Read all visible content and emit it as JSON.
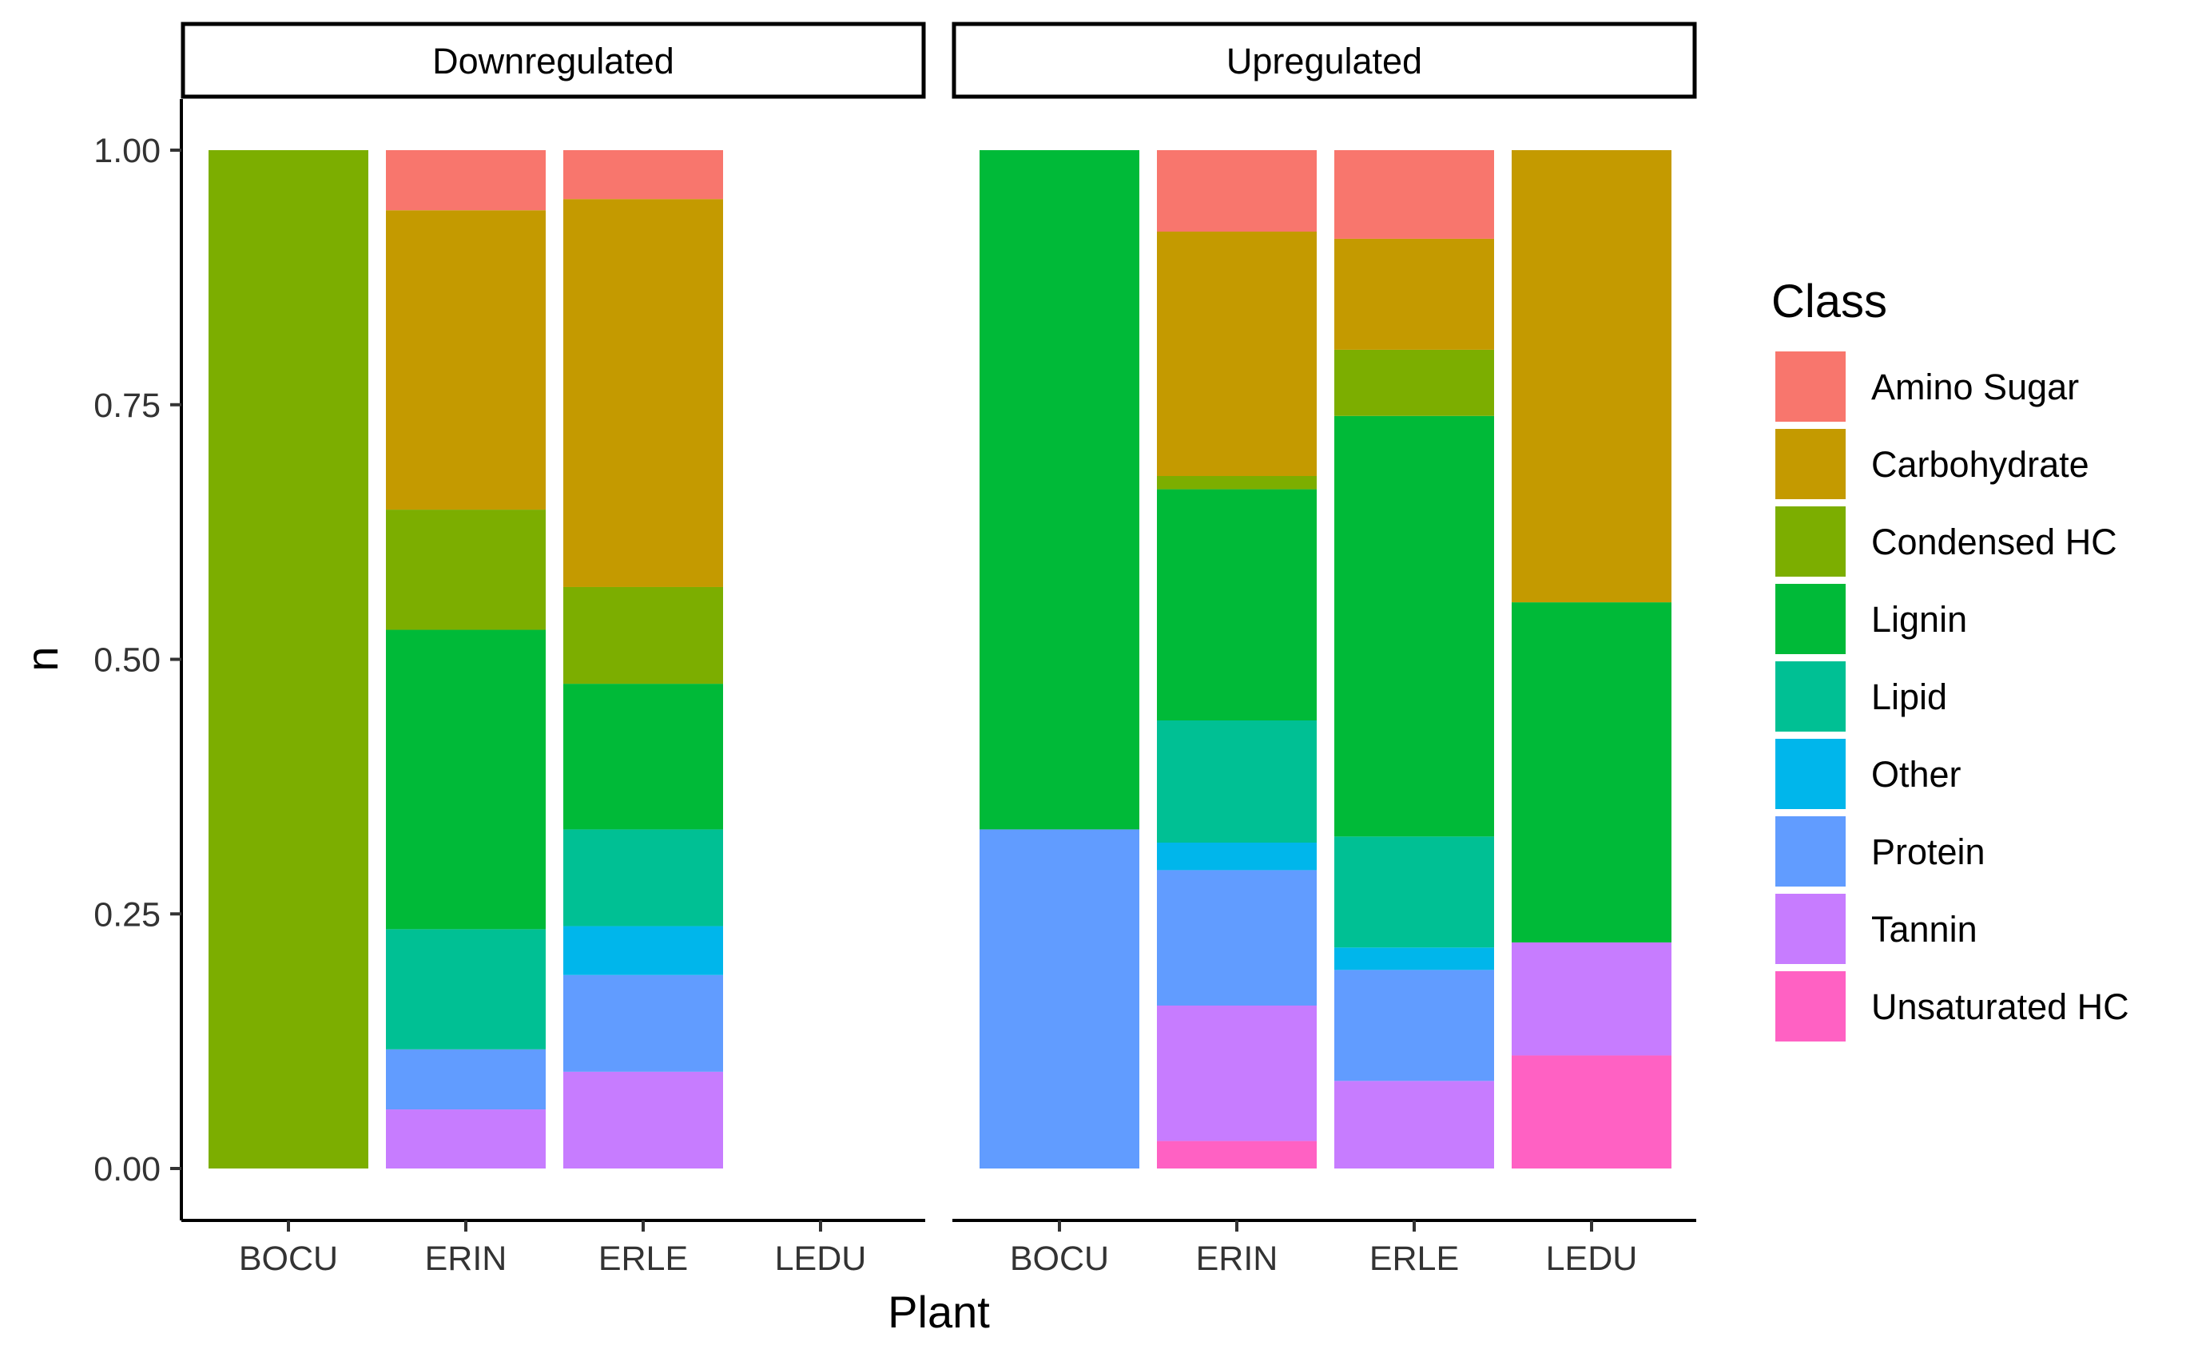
{
  "chart_data": {
    "type": "bar",
    "stacked": true,
    "xlabel": "Plant",
    "ylabel": "n",
    "ylim": [
      0,
      1
    ],
    "yticks": [
      "0.00",
      "0.25",
      "0.50",
      "0.75",
      "1.00"
    ],
    "categories": [
      "BOCU",
      "ERIN",
      "ERLE",
      "LEDU"
    ],
    "legend": {
      "title": "Class",
      "position": "right",
      "entries": [
        {
          "name": "Amino Sugar",
          "color": "#F8766D"
        },
        {
          "name": "Carbohydrate",
          "color": "#C49A00"
        },
        {
          "name": "Condensed HC",
          "color": "#7CAE00"
        },
        {
          "name": "Lignin",
          "color": "#00BA38"
        },
        {
          "name": "Lipid",
          "color": "#00C094"
        },
        {
          "name": "Other",
          "color": "#00B6EB"
        },
        {
          "name": "Protein",
          "color": "#619CFF"
        },
        {
          "name": "Tannin",
          "color": "#C77CFF"
        },
        {
          "name": "Unsaturated HC",
          "color": "#FF61C3"
        }
      ]
    },
    "panels": [
      {
        "label": "Downregulated",
        "bars": [
          {
            "category": "BOCU",
            "segments": [
              {
                "class": "Condensed HC",
                "value": 1.0
              }
            ]
          },
          {
            "category": "ERIN",
            "segments": [
              {
                "class": "Amino Sugar",
                "value": 0.059
              },
              {
                "class": "Carbohydrate",
                "value": 0.294
              },
              {
                "class": "Condensed HC",
                "value": 0.118
              },
              {
                "class": "Lignin",
                "value": 0.294
              },
              {
                "class": "Lipid",
                "value": 0.118
              },
              {
                "class": "Protein",
                "value": 0.059
              },
              {
                "class": "Tannin",
                "value": 0.058
              }
            ]
          },
          {
            "category": "ERLE",
            "segments": [
              {
                "class": "Amino Sugar",
                "value": 0.048
              },
              {
                "class": "Carbohydrate",
                "value": 0.381
              },
              {
                "class": "Condensed HC",
                "value": 0.095
              },
              {
                "class": "Lignin",
                "value": 0.143
              },
              {
                "class": "Lipid",
                "value": 0.095
              },
              {
                "class": "Other",
                "value": 0.048
              },
              {
                "class": "Protein",
                "value": 0.095
              },
              {
                "class": "Tannin",
                "value": 0.095
              }
            ]
          },
          {
            "category": "LEDU",
            "segments": []
          }
        ]
      },
      {
        "label": "Upregulated",
        "bars": [
          {
            "category": "BOCU",
            "segments": [
              {
                "class": "Lignin",
                "value": 0.667
              },
              {
                "class": "Protein",
                "value": 0.333
              }
            ]
          },
          {
            "category": "ERIN",
            "segments": [
              {
                "class": "Amino Sugar",
                "value": 0.08
              },
              {
                "class": "Carbohydrate",
                "value": 0.24
              },
              {
                "class": "Condensed HC",
                "value": 0.013
              },
              {
                "class": "Lignin",
                "value": 0.227
              },
              {
                "class": "Lipid",
                "value": 0.12
              },
              {
                "class": "Other",
                "value": 0.027
              },
              {
                "class": "Protein",
                "value": 0.133
              },
              {
                "class": "Tannin",
                "value": 0.133
              },
              {
                "class": "Unsaturated HC",
                "value": 0.027
              }
            ]
          },
          {
            "category": "ERLE",
            "segments": [
              {
                "class": "Amino Sugar",
                "value": 0.087
              },
              {
                "class": "Carbohydrate",
                "value": 0.109
              },
              {
                "class": "Condensed HC",
                "value": 0.065
              },
              {
                "class": "Lignin",
                "value": 0.413
              },
              {
                "class": "Lipid",
                "value": 0.109
              },
              {
                "class": "Other",
                "value": 0.022
              },
              {
                "class": "Protein",
                "value": 0.109
              },
              {
                "class": "Tannin",
                "value": 0.086
              }
            ]
          },
          {
            "category": "LEDU",
            "segments": [
              {
                "class": "Carbohydrate",
                "value": 0.444
              },
              {
                "class": "Lignin",
                "value": 0.334
              },
              {
                "class": "Tannin",
                "value": 0.111
              },
              {
                "class": "Unsaturated HC",
                "value": 0.111
              }
            ]
          }
        ]
      }
    ]
  }
}
